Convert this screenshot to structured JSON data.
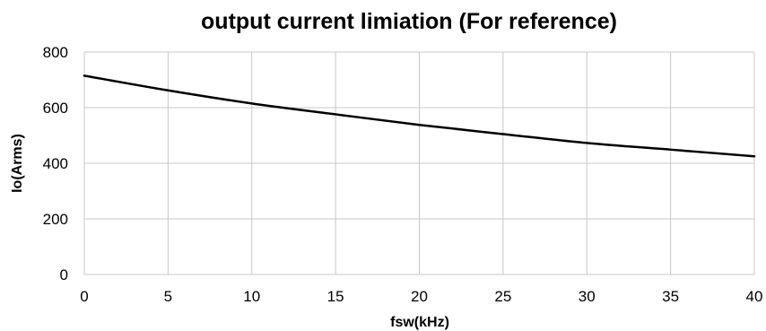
{
  "chart_data": {
    "type": "line",
    "title": "output current limiation (For reference)",
    "xlabel": "fsw(kHz)",
    "ylabel": "Io(Arms)",
    "xlim": [
      0,
      40
    ],
    "ylim": [
      0,
      800
    ],
    "xticks": [
      0,
      5,
      10,
      15,
      20,
      25,
      30,
      35,
      40
    ],
    "yticks": [
      0,
      200,
      400,
      600,
      800
    ],
    "grid": true,
    "legend": "none",
    "series": [
      {
        "color": "#000000",
        "x": [
          0,
          5,
          10,
          15,
          20,
          25,
          30,
          35,
          40
        ],
        "y": [
          715,
          662,
          615,
          576,
          538,
          505,
          473,
          449,
          425
        ]
      }
    ]
  }
}
